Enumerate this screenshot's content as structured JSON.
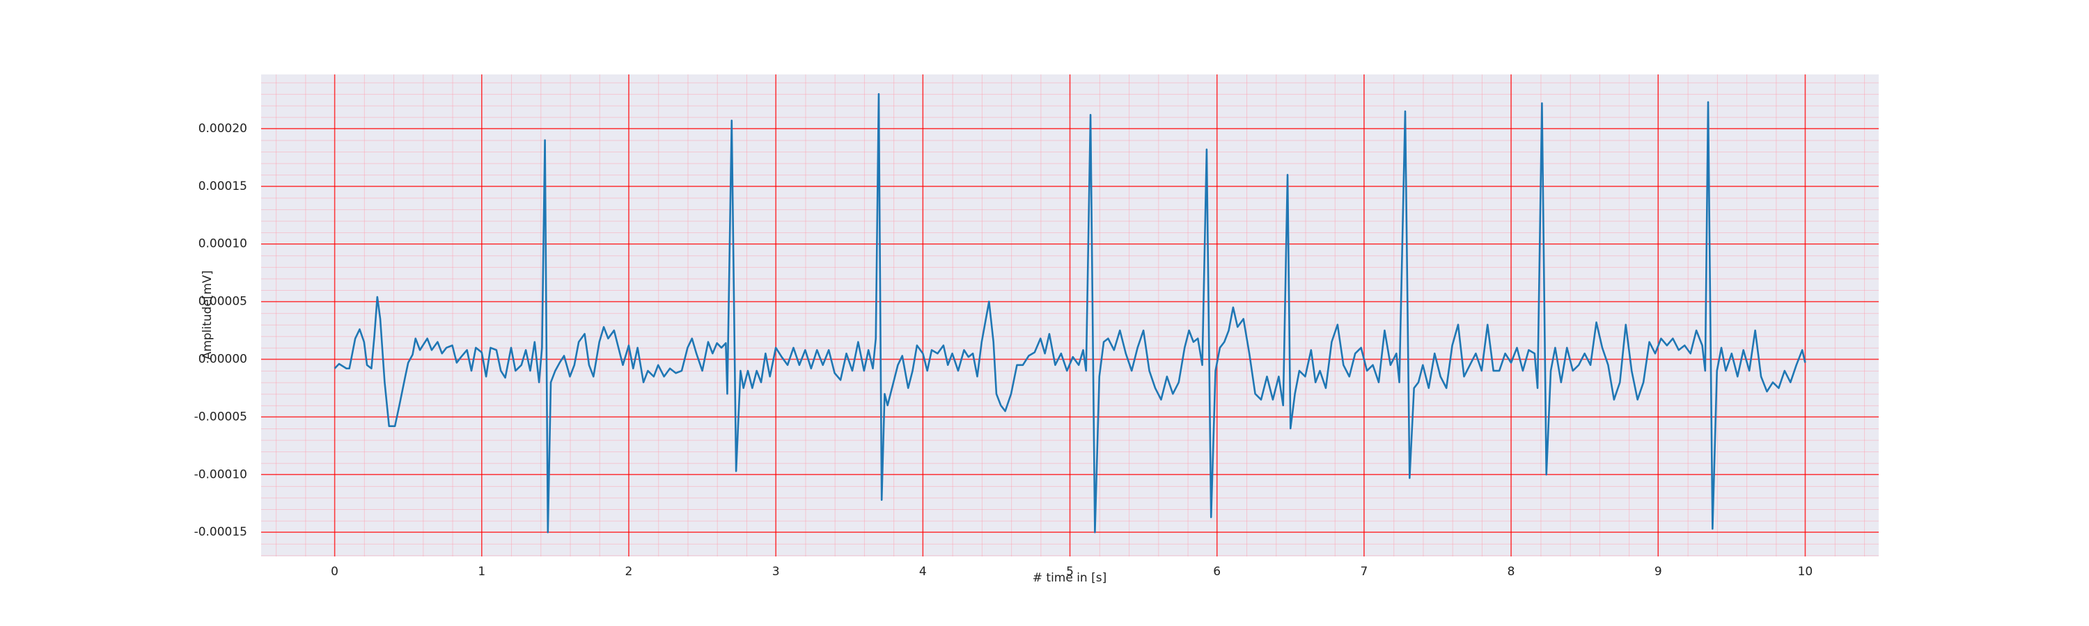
{
  "chart_data": {
    "type": "line",
    "xlabel": "# time in [s]",
    "ylabel": "Amplitude[mV]",
    "color": "#1f77b4",
    "grid": true,
    "grid_color": "#ff0000",
    "background": "#eaeaf2",
    "xlim": [
      -0.5,
      10.5
    ],
    "xticks": [
      0,
      1,
      2,
      3,
      4,
      5,
      6,
      7,
      8,
      9,
      10
    ],
    "ylim": [
      -0.000171,
      0.000247
    ],
    "yticks": [
      {
        "value": -0.00015,
        "label": "-0.00015"
      },
      {
        "value": -0.0001,
        "label": "-0.00010"
      },
      {
        "value": -5e-05,
        "label": "-0.00005"
      },
      {
        "value": 0,
        "label": "0.00000"
      },
      {
        "value": 5e-05,
        "label": "0.00005"
      },
      {
        "value": 0.0001,
        "label": "0.00010"
      },
      {
        "value": 0.00015,
        "label": "0.00015"
      },
      {
        "value": 0.0002,
        "label": "0.00020"
      }
    ],
    "x": [
      0.0,
      0.03,
      0.08,
      0.1,
      0.14,
      0.17,
      0.2,
      0.22,
      0.25,
      0.27,
      0.29,
      0.31,
      0.34,
      0.37,
      0.41,
      0.44,
      0.48,
      0.5,
      0.53,
      0.55,
      0.58,
      0.6,
      0.63,
      0.66,
      0.7,
      0.73,
      0.76,
      0.8,
      0.83,
      0.86,
      0.9,
      0.93,
      0.96,
      1.0,
      1.03,
      1.06,
      1.1,
      1.13,
      1.16,
      1.2,
      1.23,
      1.27,
      1.3,
      1.33,
      1.36,
      1.39,
      1.41,
      1.43,
      1.45,
      1.47,
      1.5,
      1.53,
      1.56,
      1.6,
      1.63,
      1.66,
      1.7,
      1.73,
      1.76,
      1.8,
      1.83,
      1.86,
      1.9,
      1.93,
      1.96,
      2.0,
      2.03,
      2.06,
      2.1,
      2.13,
      2.17,
      2.2,
      2.24,
      2.28,
      2.32,
      2.36,
      2.4,
      2.43,
      2.46,
      2.5,
      2.54,
      2.57,
      2.6,
      2.63,
      2.66,
      2.67,
      2.7,
      2.73,
      2.76,
      2.78,
      2.81,
      2.84,
      2.87,
      2.9,
      2.93,
      2.96,
      3.0,
      3.04,
      3.08,
      3.12,
      3.16,
      3.2,
      3.24,
      3.28,
      3.32,
      3.36,
      3.4,
      3.44,
      3.48,
      3.52,
      3.56,
      3.6,
      3.63,
      3.66,
      3.68,
      3.7,
      3.72,
      3.74,
      3.76,
      3.8,
      3.83,
      3.86,
      3.9,
      3.93,
      3.96,
      4.0,
      4.03,
      4.06,
      4.1,
      4.14,
      4.17,
      4.2,
      4.24,
      4.28,
      4.31,
      4.34,
      4.37,
      4.4,
      4.45,
      4.48,
      4.5,
      4.53,
      4.56,
      4.6,
      4.64,
      4.68,
      4.72,
      4.76,
      4.8,
      4.83,
      4.86,
      4.9,
      4.94,
      4.98,
      5.02,
      5.06,
      5.09,
      5.11,
      5.14,
      5.17,
      5.2,
      5.23,
      5.26,
      5.3,
      5.34,
      5.38,
      5.42,
      5.46,
      5.5,
      5.54,
      5.58,
      5.62,
      5.66,
      5.7,
      5.74,
      5.78,
      5.81,
      5.84,
      5.87,
      5.9,
      5.93,
      5.96,
      5.99,
      6.02,
      6.05,
      6.08,
      6.11,
      6.14,
      6.18,
      6.22,
      6.26,
      6.3,
      6.34,
      6.38,
      6.42,
      6.45,
      6.48,
      6.5,
      6.53,
      6.56,
      6.6,
      6.64,
      6.67,
      6.7,
      6.74,
      6.78,
      6.82,
      6.86,
      6.9,
      6.94,
      6.98,
      7.02,
      7.06,
      7.1,
      7.14,
      7.18,
      7.22,
      7.24,
      7.28,
      7.31,
      7.34,
      7.37,
      7.4,
      7.44,
      7.48,
      7.52,
      7.56,
      7.6,
      7.64,
      7.68,
      7.72,
      7.76,
      7.8,
      7.84,
      7.88,
      7.92,
      7.96,
      8.0,
      8.04,
      8.08,
      8.12,
      8.16,
      8.18,
      8.21,
      8.24,
      8.27,
      8.3,
      8.34,
      8.38,
      8.42,
      8.46,
      8.5,
      8.54,
      8.58,
      8.62,
      8.66,
      8.7,
      8.74,
      8.78,
      8.82,
      8.86,
      8.9,
      8.94,
      8.98,
      9.02,
      9.06,
      9.1,
      9.14,
      9.18,
      9.22,
      9.26,
      9.3,
      9.32,
      9.34,
      9.37,
      9.4,
      9.43,
      9.46,
      9.5,
      9.54,
      9.58,
      9.62,
      9.66,
      9.7,
      9.74,
      9.78,
      9.82,
      9.86,
      9.9,
      9.94,
      9.98,
      10.0
    ],
    "values": [
      -8e-06,
      -4e-06,
      -8e-06,
      -8e-06,
      1.8e-05,
      2.6e-05,
      1.5e-05,
      -5e-06,
      -8e-06,
      2e-05,
      5.4e-05,
      3.5e-05,
      -2e-05,
      -5.8e-05,
      -5.8e-05,
      -4e-05,
      -1.5e-05,
      -3e-06,
      4e-06,
      1.8e-05,
      8e-06,
      1.2e-05,
      1.8e-05,
      8e-06,
      1.5e-05,
      5e-06,
      1e-05,
      1.2e-05,
      -3e-06,
      2e-06,
      8e-06,
      -1e-05,
      1e-05,
      6e-06,
      -1.5e-05,
      1e-05,
      8e-06,
      -1e-05,
      -1.6e-05,
      1e-05,
      -1e-05,
      -5e-06,
      8e-06,
      -1e-05,
      1.5e-05,
      -2e-05,
      1e-05,
      0.00019,
      -0.00015,
      -2e-05,
      -1e-05,
      -3e-06,
      3e-06,
      -1.5e-05,
      -5e-06,
      1.5e-05,
      2.2e-05,
      -5e-06,
      -1.5e-05,
      1.5e-05,
      2.8e-05,
      1.8e-05,
      2.5e-05,
      1e-05,
      -5e-06,
      1.2e-05,
      -8e-06,
      1e-05,
      -2e-05,
      -1e-05,
      -1.5e-05,
      -5e-06,
      -1.5e-05,
      -8e-06,
      -1.2e-05,
      -1e-05,
      1e-05,
      1.8e-05,
      5e-06,
      -1e-05,
      1.5e-05,
      5e-06,
      1.4e-05,
      1e-05,
      1.4e-05,
      -3e-05,
      0.000207,
      -9.7e-05,
      -1e-05,
      -2.5e-05,
      -1e-05,
      -2.5e-05,
      -1e-05,
      -2e-05,
      5e-06,
      -1.5e-05,
      1e-05,
      2e-06,
      -5e-06,
      1e-05,
      -5e-06,
      8e-06,
      -8e-06,
      8e-06,
      -5e-06,
      8e-06,
      -1.2e-05,
      -1.8e-05,
      5e-06,
      -1e-05,
      1.5e-05,
      -1e-05,
      8e-06,
      -8e-06,
      1.8e-05,
      0.00023,
      -0.000122,
      -3e-05,
      -4e-05,
      -2e-05,
      -5e-06,
      3e-06,
      -2.5e-05,
      -1e-05,
      1.2e-05,
      5e-06,
      -1e-05,
      8e-06,
      5e-06,
      1.2e-05,
      -5e-06,
      5e-06,
      -1e-05,
      8e-06,
      2e-06,
      5e-06,
      -1.5e-05,
      1.5e-05,
      5e-05,
      1.5e-05,
      -3e-05,
      -4e-05,
      -4.5e-05,
      -3e-05,
      -5e-06,
      -5e-06,
      3e-06,
      6e-06,
      1.8e-05,
      5e-06,
      2.2e-05,
      -5e-06,
      5e-06,
      -1e-05,
      2e-06,
      -5e-06,
      8e-06,
      -1e-05,
      0.000212,
      -0.00015,
      -1.5e-05,
      1.5e-05,
      1.8e-05,
      8e-06,
      2.5e-05,
      5e-06,
      -1e-05,
      1e-05,
      2.5e-05,
      -1e-05,
      -2.5e-05,
      -3.5e-05,
      -1.5e-05,
      -3e-05,
      -2e-05,
      1e-05,
      2.5e-05,
      1.5e-05,
      1.8e-05,
      -5e-06,
      0.000182,
      -0.000137,
      -1e-05,
      1e-05,
      1.5e-05,
      2.5e-05,
      4.5e-05,
      2.8e-05,
      3.5e-05,
      5e-06,
      -3e-05,
      -3.5e-05,
      -1.5e-05,
      -3.5e-05,
      -1.5e-05,
      -4e-05,
      0.00016,
      -6e-05,
      -3e-05,
      -1e-05,
      -1.5e-05,
      8e-06,
      -2e-05,
      -1e-05,
      -2.5e-05,
      1.5e-05,
      3e-05,
      -5e-06,
      -1.5e-05,
      5e-06,
      1e-05,
      -1e-05,
      -5e-06,
      -2e-05,
      2.5e-05,
      -5e-06,
      5e-06,
      -2e-05,
      0.000215,
      -0.000103,
      -2.5e-05,
      -2e-05,
      -5e-06,
      -2.5e-05,
      5e-06,
      -1.5e-05,
      -2.5e-05,
      1.2e-05,
      3e-05,
      -1.5e-05,
      -5e-06,
      5e-06,
      -1e-05,
      3e-05,
      -1e-05,
      -1e-05,
      5e-06,
      -3e-06,
      1e-05,
      -1e-05,
      8e-06,
      5e-06,
      -2.5e-05,
      0.000222,
      -0.0001,
      -1e-05,
      1e-05,
      -2e-05,
      1e-05,
      -1e-05,
      -5e-06,
      5e-06,
      -5e-06,
      3.2e-05,
      1e-05,
      -5e-06,
      -3.5e-05,
      -2e-05,
      3e-05,
      -1e-05,
      -3.5e-05,
      -2e-05,
      1.5e-05,
      5e-06,
      1.8e-05,
      1.2e-05,
      1.8e-05,
      8e-06,
      1.2e-05,
      5e-06,
      2.5e-05,
      1.2e-05,
      -1e-05,
      0.000223,
      -0.000147,
      -1e-05,
      1e-05,
      -1e-05,
      5e-06,
      -1.5e-05,
      8e-06,
      -1e-05,
      2.5e-05,
      -1.5e-05,
      -2.8e-05,
      -2e-05,
      -2.5e-05,
      -1e-05,
      -2e-05,
      -5e-06,
      8e-06,
      -3e-06
    ]
  }
}
